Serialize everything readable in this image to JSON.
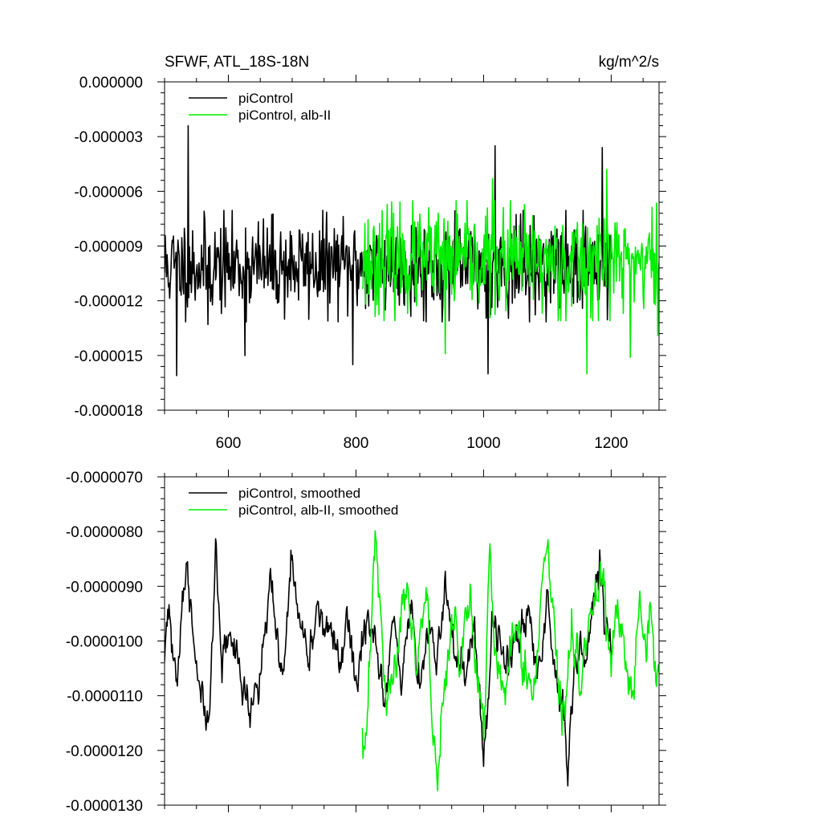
{
  "chart_data": [
    {
      "type": "line",
      "title": "SFWF, ATL_18S-18N",
      "units": "kg/m^2/s",
      "xlim": [
        500,
        1275
      ],
      "ylim": [
        -1.8e-05,
        0.0
      ],
      "xticks": [
        600,
        800,
        1000,
        1200
      ],
      "xtick_labels": [
        "600",
        "800",
        "1000",
        "1200"
      ],
      "yticks": [
        0.0,
        -3e-06,
        -6e-06,
        -9e-06,
        -1.2e-05,
        -1.5e-05,
        -1.8e-05
      ],
      "ytick_labels": [
        "0.000000",
        "-0.000003",
        "-0.000006",
        "-0.000009",
        "-0.000012",
        "-0.000015",
        "-0.000018"
      ],
      "legend_position": "top-left",
      "series": [
        {
          "name": "piControl",
          "color": "#000000",
          "x_range": [
            500,
            1200
          ],
          "mean": -1.01e-05,
          "std": 1.3e-06,
          "seed": 11,
          "extremes": [
            {
              "x": 537,
              "y": -2.4e-06
            },
            {
              "x": 519,
              "y": -1.61e-05
            },
            {
              "x": 1018,
              "y": -3.5e-06
            },
            {
              "x": 1007,
              "y": -1.6e-05
            },
            {
              "x": 1186,
              "y": -3.6e-06
            },
            {
              "x": 795,
              "y": -1.55e-05
            },
            {
              "x": 568,
              "y": -1.33e-05
            },
            {
              "x": 626,
              "y": -1.5e-05
            }
          ]
        },
        {
          "name": "piControl, alb-II",
          "color": "#00ee00",
          "x_range": [
            810,
            1275
          ],
          "mean": -9.8e-06,
          "std": 1.4e-06,
          "seed": 23,
          "extremes": [
            {
              "x": 1014,
              "y": -5.3e-06
            },
            {
              "x": 1162,
              "y": -1.6e-05
            },
            {
              "x": 1193,
              "y": -4.8e-06
            },
            {
              "x": 1230,
              "y": -1.51e-05
            },
            {
              "x": 1273,
              "y": -1.39e-05
            },
            {
              "x": 940,
              "y": -1.49e-05
            }
          ]
        }
      ]
    },
    {
      "type": "line",
      "xlim": [
        500,
        1275
      ],
      "ylim": [
        -1.3e-05,
        -7e-06
      ],
      "xticks": [
        600,
        800,
        1000,
        1200
      ],
      "yticks": [
        -7e-06,
        -8e-06,
        -9e-06,
        -1e-05,
        -1.1e-05,
        -1.2e-05,
        -1.3e-05
      ],
      "ytick_labels": [
        "-0.0000070",
        "-0.0000080",
        "-0.0000090",
        "-0.0000100",
        "-0.0000110",
        "-0.0000120",
        "-0.0000130"
      ],
      "legend_position": "top-left",
      "series": [
        {
          "name": "piControl, smoothed",
          "color": "#000000",
          "x_range": [
            500,
            1200
          ],
          "anchors": [
            [
              500,
              -1.06e-05
            ],
            [
              505,
              -9.5e-06
            ],
            [
              512,
              -1.01e-05
            ],
            [
              520,
              -1.08e-05
            ],
            [
              527,
              -9.3e-06
            ],
            [
              535,
              -8.8e-06
            ],
            [
              542,
              -9.6e-06
            ],
            [
              550,
              -1.04e-05
            ],
            [
              560,
              -1.1e-05
            ],
            [
              568,
              -1.19e-05
            ],
            [
              575,
              -1e-05
            ],
            [
              580,
              -8.5e-06
            ],
            [
              590,
              -1.05e-05
            ],
            [
              600,
              -9.8e-06
            ],
            [
              610,
              -1.02e-05
            ],
            [
              620,
              -1.06e-05
            ],
            [
              635,
              -1.12e-05
            ],
            [
              645,
              -1.08e-05
            ],
            [
              660,
              -9.8e-06
            ],
            [
              665,
              -8.6e-06
            ],
            [
              675,
              -1e-05
            ],
            [
              685,
              -1.08e-05
            ],
            [
              700,
              -8.5e-06
            ],
            [
              712,
              -9.7e-06
            ],
            [
              725,
              -1.03e-05
            ],
            [
              740,
              -9.4e-06
            ],
            [
              760,
              -9.8e-06
            ],
            [
              775,
              -1.05e-05
            ],
            [
              790,
              -9.7e-06
            ],
            [
              800,
              -1.09e-05
            ],
            [
              815,
              -9.5e-06
            ],
            [
              830,
              -1e-05
            ],
            [
              845,
              -1.13e-05
            ],
            [
              860,
              -9.5e-06
            ],
            [
              870,
              -1.11e-05
            ],
            [
              885,
              -9.3e-06
            ],
            [
              900,
              -1.08e-05
            ],
            [
              915,
              -9.6e-06
            ],
            [
              925,
              -1.03e-05
            ],
            [
              940,
              -9.1e-06
            ],
            [
              955,
              -1.03e-05
            ],
            [
              970,
              -1.08e-05
            ],
            [
              985,
              -9.8e-06
            ],
            [
              1000,
              -1.22e-05
            ],
            [
              1015,
              -9.4e-06
            ],
            [
              1025,
              -1e-05
            ],
            [
              1040,
              -1.06e-05
            ],
            [
              1055,
              -9.9e-06
            ],
            [
              1070,
              -9.5e-06
            ],
            [
              1085,
              -1.06e-05
            ],
            [
              1100,
              -9.3e-06
            ],
            [
              1112,
              -1.05e-05
            ],
            [
              1125,
              -1.1e-05
            ],
            [
              1132,
              -1.24e-05
            ],
            [
              1140,
              -1.07e-05
            ],
            [
              1150,
              -1.01e-05
            ],
            [
              1158,
              -1.03e-05
            ],
            [
              1165,
              -9.6e-06
            ],
            [
              1175,
              -9.2e-06
            ],
            [
              1182,
              -8.3e-06
            ],
            [
              1190,
              -9.7e-06
            ],
            [
              1200,
              -1.02e-05
            ]
          ],
          "noise": 2.2e-07,
          "seed": 31
        },
        {
          "name": "piControl, alb-II, smoothed",
          "color": "#00ee00",
          "x_range": [
            810,
            1275
          ],
          "anchors": [
            [
              810,
              -1.13e-05
            ],
            [
              815,
              -1.19e-05
            ],
            [
              822,
              -1.05e-05
            ],
            [
              830,
              -8e-06
            ],
            [
              838,
              -9.6e-06
            ],
            [
              848,
              -1.12e-05
            ],
            [
              858,
              -1.08e-05
            ],
            [
              868,
              -9.8e-06
            ],
            [
              880,
              -9e-06
            ],
            [
              895,
              -1.05e-05
            ],
            [
              905,
              -9.6e-06
            ],
            [
              912,
              -9.3e-06
            ],
            [
              920,
              -1.17e-05
            ],
            [
              928,
              -1.24e-05
            ],
            [
              938,
              -1.1e-05
            ],
            [
              950,
              -9.6e-06
            ],
            [
              965,
              -1.03e-05
            ],
            [
              980,
              -9.1e-06
            ],
            [
              990,
              -1.06e-05
            ],
            [
              1000,
              -1.16e-05
            ],
            [
              1010,
              -8.5e-06
            ],
            [
              1020,
              -1.03e-05
            ],
            [
              1035,
              -1.09e-05
            ],
            [
              1050,
              -9.6e-06
            ],
            [
              1060,
              -1.04e-05
            ],
            [
              1075,
              -1.12e-05
            ],
            [
              1085,
              -1e-05
            ],
            [
              1092,
              -8.7e-06
            ],
            [
              1100,
              -8e-06
            ],
            [
              1108,
              -9.4e-06
            ],
            [
              1118,
              -1.1e-05
            ],
            [
              1128,
              -1.13e-05
            ],
            [
              1138,
              -9.9e-06
            ],
            [
              1150,
              -1.06e-05
            ],
            [
              1160,
              -1e-05
            ],
            [
              1170,
              -9.6e-06
            ],
            [
              1180,
              -9e-06
            ],
            [
              1188,
              -8.7e-06
            ],
            [
              1195,
              -1.02e-05
            ],
            [
              1210,
              -9.4e-06
            ],
            [
              1220,
              -1.01e-05
            ],
            [
              1230,
              -1.1e-05
            ],
            [
              1235,
              -1.12e-05
            ],
            [
              1245,
              -9.2e-06
            ],
            [
              1255,
              -1.03e-05
            ],
            [
              1262,
              -9.7e-06
            ],
            [
              1270,
              -1.07e-05
            ],
            [
              1275,
              -1.05e-05
            ]
          ],
          "noise": 2.5e-07,
          "seed": 47
        }
      ]
    }
  ]
}
